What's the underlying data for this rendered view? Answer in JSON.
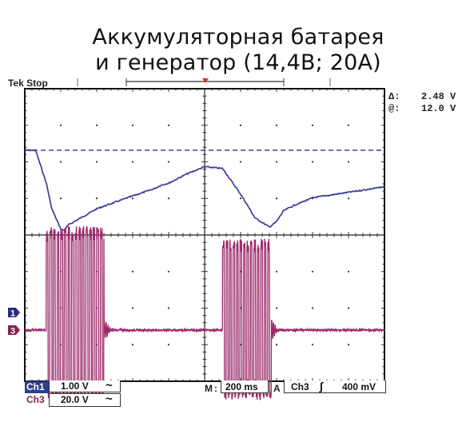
{
  "title_line1": "Аккумуляторная батарея",
  "title_line2": "и генератор (14,4В; 20А)",
  "status": "Tek Stop",
  "cursor_readout": {
    "delta_label": "Δ:",
    "delta_value": "2.48 V",
    "at_label": "@:",
    "at_value": "12.0 V"
  },
  "channel_markers": {
    "ch1": "1",
    "ch3": "3"
  },
  "bottom_bar": {
    "ch1_label": "Ch1",
    "ch1_scale": "1.00 V",
    "ch1_coupling": "~",
    "ch3_label": "Ch3",
    "ch3_scale": "20.0 V",
    "ch3_coupling": "~",
    "timebase_label": "M",
    "timebase_value": "200 ms",
    "trigger_mode": "A",
    "trigger_source": "Ch3",
    "trigger_slope": "∫",
    "trigger_level": "400 mV"
  },
  "colors": {
    "ch1": "#3b3f9a",
    "ch3": "#9b2a6a",
    "grid": "#222222",
    "frame": "#111111"
  },
  "chart_data": {
    "type": "line",
    "xlabel": "",
    "ylabel": "",
    "grid": true,
    "xlim": [
      0,
      2.0
    ],
    "time_per_div_s": 0.2,
    "series": [
      {
        "channel": "Ch1",
        "volts_per_div": 1.0,
        "cursor_level_v": 12.0,
        "x": [
          0,
          0.06,
          0.12,
          0.15,
          0.2,
          0.22,
          0.24,
          0.4,
          0.6,
          0.63,
          0.66,
          0.72,
          0.76,
          0.8,
          0.9,
          1.0,
          1.1,
          1.2,
          1.25,
          1.28,
          1.36,
          1.4,
          1.44,
          1.5,
          1.6,
          1.8,
          2.0
        ],
        "y": [
          12.0,
          12.0,
          11.1,
          10.4,
          9.85,
          9.8,
          9.95,
          10.4,
          10.75,
          10.8,
          10.85,
          10.95,
          11.05,
          11.1,
          11.35,
          11.55,
          11.5,
          10.8,
          10.4,
          10.15,
          9.9,
          10.05,
          10.35,
          10.5,
          10.7,
          10.85,
          11.0
        ]
      },
      {
        "channel": "Ch3",
        "volts_per_div": 20.0,
        "baseline_v": 0,
        "bursts": [
          {
            "start": 0.12,
            "end": 0.44,
            "pulses": 16,
            "peak_v": 57,
            "trough_v": -38
          },
          {
            "start": 1.1,
            "end": 1.37,
            "pulses": 14,
            "peak_v": 50,
            "trough_v": -38
          }
        ]
      }
    ]
  }
}
